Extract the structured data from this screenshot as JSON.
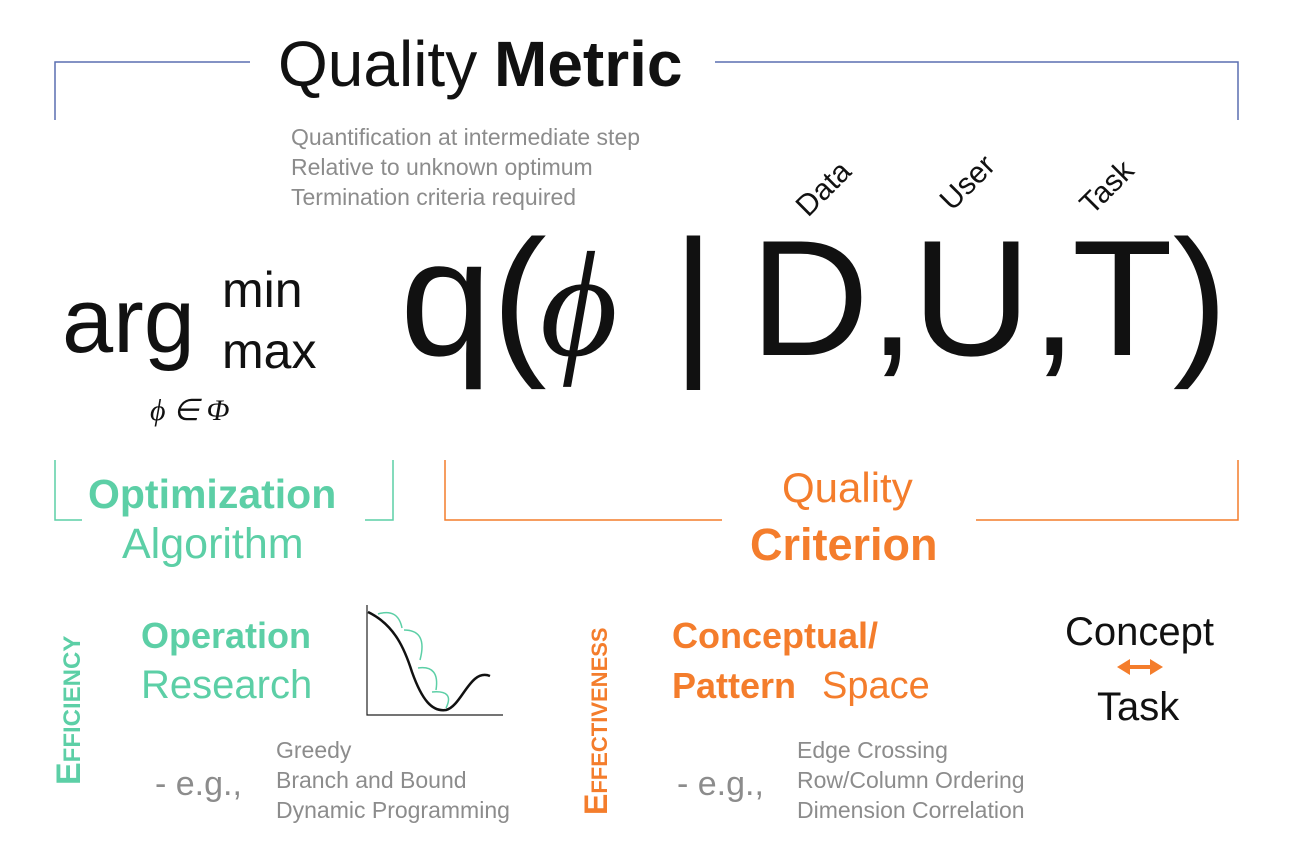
{
  "title": {
    "regular": "Quality",
    "bold": "Metric"
  },
  "notes": [
    "Quantification at intermediate step",
    "Relative to unknown optimum",
    "Termination criteria required"
  ],
  "parameter_labels": [
    "Data",
    "User",
    "Task"
  ],
  "formula": {
    "arg": "arg",
    "min": "min",
    "max": "max",
    "domain": "ϕ ∈ Φ",
    "parts": [
      "q(",
      "ϕ",
      "|",
      "D,",
      "U,",
      "T)"
    ]
  },
  "optimization": {
    "bold": "Optimization",
    "regular": "Algorithm",
    "side_label": "Efficiency",
    "heading_bold": "Operation",
    "heading_regular": "Research",
    "eg": "- e.g.,",
    "examples": [
      "Greedy",
      "Branch and Bound",
      "Dynamic Programming"
    ]
  },
  "criterion": {
    "regular": "Quality",
    "bold": "Criterion",
    "side_label": "Effectiveness",
    "heading_line1": "Conceptual/",
    "heading_bold": "Pattern",
    "heading_regular": "Space",
    "concept": "Concept",
    "task": "Task",
    "eg": "- e.g.,",
    "examples": [
      "Edge Crossing",
      "Row/Column Ordering",
      "Dimension Correlation"
    ]
  }
}
